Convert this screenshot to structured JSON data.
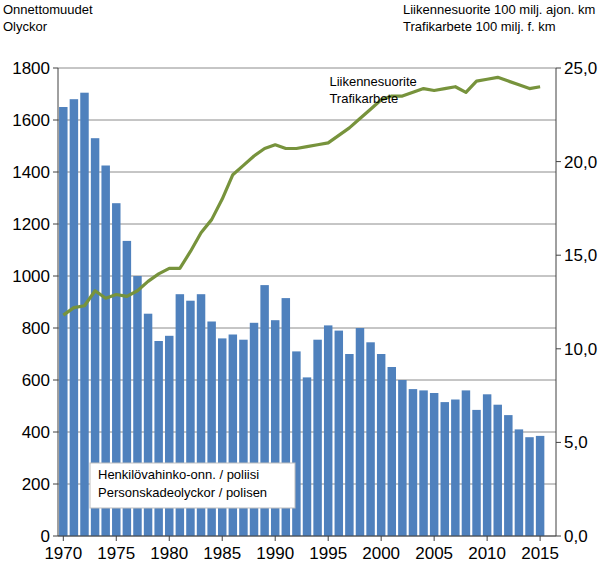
{
  "chart_data": {
    "type": "bar",
    "y_label": "Onnettomuudet\nOlyckor",
    "y2_label": "Liikennesuorite 100 milj. ajon. km\nTrafikarbete 100 milj. f. km",
    "x": [
      1970,
      1971,
      1972,
      1973,
      1974,
      1975,
      1976,
      1977,
      1978,
      1979,
      1980,
      1981,
      1982,
      1983,
      1984,
      1985,
      1986,
      1987,
      1988,
      1989,
      1990,
      1991,
      1992,
      1993,
      1994,
      1995,
      1996,
      1997,
      1998,
      1999,
      2000,
      2001,
      2002,
      2003,
      2004,
      2005,
      2006,
      2007,
      2008,
      2009,
      2010,
      2011,
      2012,
      2013,
      2014,
      2015
    ],
    "xlim": [
      1969.5,
      2016.5
    ],
    "xticks": [
      1970,
      1975,
      1980,
      1985,
      1990,
      1995,
      2000,
      2005,
      2010,
      2015
    ],
    "ylim": [
      0,
      1800
    ],
    "yticks": [
      0,
      200,
      400,
      600,
      800,
      1000,
      1200,
      1400,
      1600,
      1800
    ],
    "y2lim": [
      0,
      25
    ],
    "y2ticks": [
      {
        "value": 0,
        "label": "0,0"
      },
      {
        "value": 5,
        "label": "5,0"
      },
      {
        "value": 10,
        "label": "10,0"
      },
      {
        "value": 15,
        "label": "15,0"
      },
      {
        "value": 20,
        "label": "20,0"
      },
      {
        "value": 25,
        "label": "25,0"
      }
    ],
    "grid": true,
    "legend": "lower left",
    "series": [
      {
        "name": "Henkilövahinko-onn. / poliisi\nPersonskadeolyckor / polisen",
        "type": "bar",
        "color": "#4f81bd",
        "values": [
          1650,
          1680,
          1705,
          1530,
          1425,
          1280,
          1135,
          1000,
          855,
          750,
          770,
          930,
          905,
          930,
          825,
          760,
          775,
          755,
          820,
          965,
          830,
          915,
          710,
          610,
          755,
          810,
          790,
          700,
          800,
          745,
          700,
          650,
          600,
          565,
          560,
          550,
          515,
          525,
          560,
          485,
          545,
          505,
          465,
          410,
          380,
          385
        ]
      },
      {
        "name": "Liikennesuorite\nTrafikarbete",
        "type": "line",
        "axis": "y2",
        "color": "#77933c",
        "values": [
          11.8,
          12.2,
          12.3,
          13.1,
          12.7,
          12.9,
          12.8,
          13.1,
          13.6,
          14.0,
          14.3,
          14.3,
          15.2,
          16.2,
          16.9,
          18.0,
          19.3,
          19.8,
          20.3,
          20.7,
          20.9,
          20.7,
          20.7,
          20.8,
          20.9,
          21.0,
          21.4,
          21.8,
          22.3,
          22.8,
          23.3,
          23.5,
          23.5,
          23.7,
          23.9,
          23.8,
          23.9,
          24.0,
          23.7,
          24.3,
          24.4,
          24.5,
          24.3,
          24.1,
          23.9,
          24.0
        ]
      }
    ]
  }
}
